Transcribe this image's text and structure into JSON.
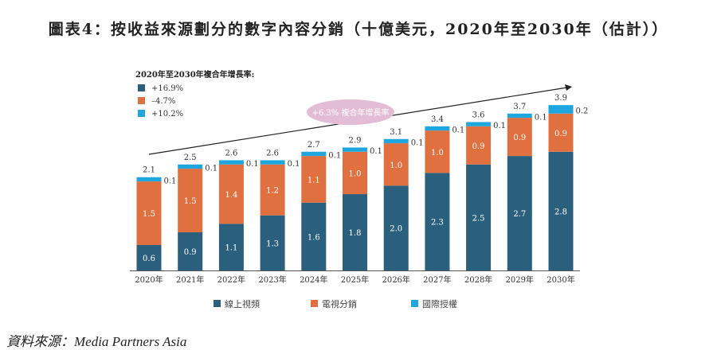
{
  "chart_data": {
    "type": "bar",
    "stacked": true,
    "title": "圖表4：按收益來源劃分的數字內容分銷（十億美元，2020年至2030年（估計））",
    "categories": [
      "2020年",
      "2021年",
      "2022年",
      "2023年",
      "2024年",
      "2025年",
      "2026年",
      "2027年",
      "2028年",
      "2029年",
      "2030年"
    ],
    "series": [
      {
        "name": "線上視頻",
        "color": "#2a5f7e",
        "cagr": "+16.9%",
        "values": [
          0.6,
          0.9,
          1.1,
          1.3,
          1.6,
          1.8,
          2.0,
          2.3,
          2.5,
          2.7,
          2.8
        ]
      },
      {
        "name": "電視分銷",
        "color": "#e07040",
        "cagr": "–4.7%",
        "values": [
          1.5,
          1.5,
          1.4,
          1.2,
          1.1,
          1.0,
          1.0,
          1.0,
          0.9,
          0.9,
          0.9
        ]
      },
      {
        "name": "國際授權",
        "color": "#1fa6df",
        "cagr": "+10.2%",
        "values": [
          0.1,
          0.1,
          0.1,
          0.1,
          0.1,
          0.1,
          0.1,
          0.1,
          0.1,
          0.1,
          0.2
        ]
      }
    ],
    "totals": [
      2.1,
      2.5,
      2.6,
      2.6,
      2.7,
      2.9,
      3.1,
      3.4,
      3.6,
      3.7,
      3.9
    ],
    "cagr_title": "2020年至2030年複合年增長率:",
    "overall_cagr": "+6.3% 複合年增長率",
    "ylim": [
      0,
      4.2
    ]
  },
  "source": "資料來源：Media Partners Asia"
}
